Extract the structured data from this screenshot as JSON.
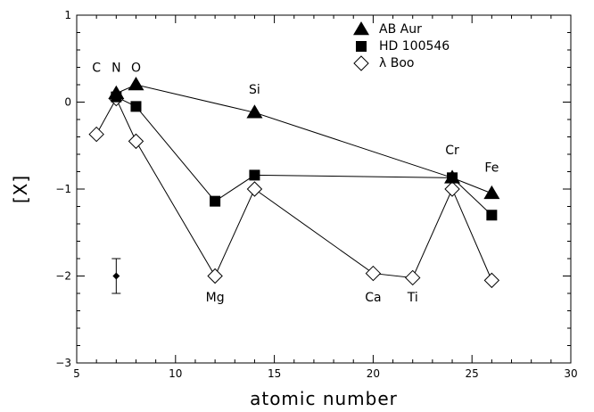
{
  "chart_data": {
    "type": "scatter",
    "title": "",
    "xlabel": "atomic number",
    "ylabel": "[X]",
    "xlim": [
      5,
      30
    ],
    "ylim": [
      -3,
      1
    ],
    "x_ticks": [
      5,
      10,
      15,
      20,
      25,
      30
    ],
    "y_ticks": [
      -3,
      -2,
      -1,
      0,
      1
    ],
    "x_tick_labels": [
      "5",
      "10",
      "15",
      "20",
      "25",
      "30"
    ],
    "y_tick_labels": [
      "−3",
      "−2",
      "−1",
      "0",
      "1"
    ],
    "legend_placement": "top-right",
    "series": [
      {
        "name": "AB Aur",
        "marker": "filled-triangle",
        "points": [
          {
            "x": 7,
            "y": 0.1
          },
          {
            "x": 8,
            "y": 0.2
          },
          {
            "x": 14,
            "y": -0.12
          },
          {
            "x": 24,
            "y": -0.87
          },
          {
            "x": 26,
            "y": -1.05
          }
        ]
      },
      {
        "name": "HD 100546",
        "marker": "filled-square",
        "points": [
          {
            "x": 7,
            "y": 0.06
          },
          {
            "x": 8,
            "y": -0.05
          },
          {
            "x": 12,
            "y": -1.14
          },
          {
            "x": 14,
            "y": -0.84
          },
          {
            "x": 24,
            "y": -0.87
          },
          {
            "x": 26,
            "y": -1.3
          }
        ]
      },
      {
        "name": "λ Boo",
        "marker": "open-diamond",
        "points": [
          {
            "x": 6,
            "y": -0.37
          },
          {
            "x": 7,
            "y": 0.04
          },
          {
            "x": 8,
            "y": -0.45
          },
          {
            "x": 12,
            "y": -2.0
          },
          {
            "x": 14,
            "y": -1.0
          },
          {
            "x": 20,
            "y": -1.97
          },
          {
            "x": 22,
            "y": -2.02
          },
          {
            "x": 24,
            "y": -1.0
          },
          {
            "x": 26,
            "y": -2.05
          }
        ]
      }
    ],
    "element_labels": [
      {
        "text": "C",
        "x": 6,
        "y": 0.35
      },
      {
        "text": "N",
        "x": 7,
        "y": 0.35
      },
      {
        "text": "O",
        "x": 8,
        "y": 0.35
      },
      {
        "text": "Si",
        "x": 14,
        "y": 0.1
      },
      {
        "text": "Cr",
        "x": 24,
        "y": -0.6
      },
      {
        "text": "Fe",
        "x": 26,
        "y": -0.8
      },
      {
        "text": "Mg",
        "x": 12,
        "y": -2.29
      },
      {
        "text": "Ca",
        "x": 20,
        "y": -2.29
      },
      {
        "text": "Ti",
        "x": 22,
        "y": -2.29
      }
    ],
    "error_bar": {
      "x": 7,
      "y": -2.0,
      "err": 0.2
    }
  }
}
